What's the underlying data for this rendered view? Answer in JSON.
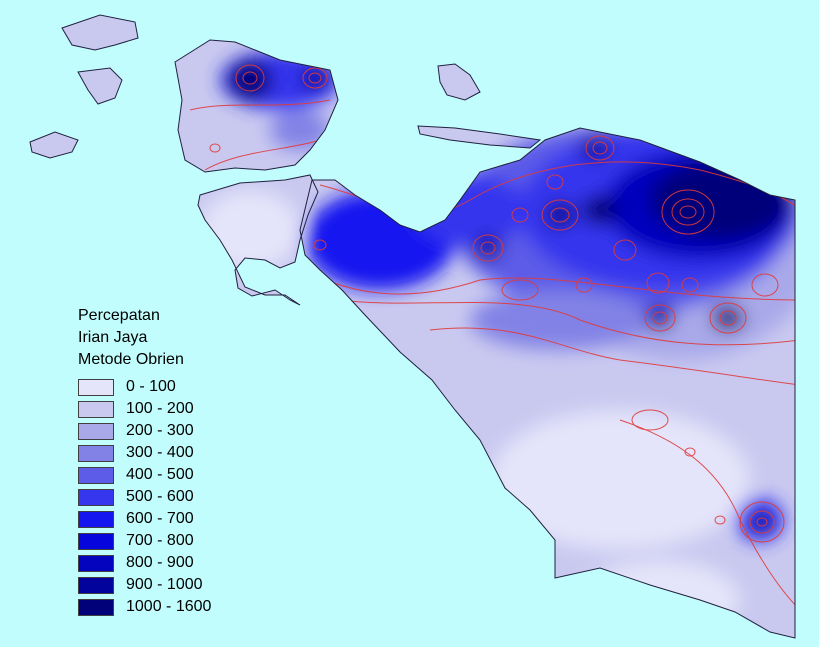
{
  "legend": {
    "title_lines": [
      "Percepatan",
      "Irian Jaya",
      "Metode Obrien"
    ],
    "classes": [
      {
        "label": "0 - 100",
        "color": "#e4e4fa"
      },
      {
        "label": "100 - 200",
        "color": "#c9c9f0"
      },
      {
        "label": "200 - 300",
        "color": "#a9a9ea"
      },
      {
        "label": "300 - 400",
        "color": "#8282e6"
      },
      {
        "label": "400 - 500",
        "color": "#5c5ce8"
      },
      {
        "label": "500 - 600",
        "color": "#3636ee"
      },
      {
        "label": "600 - 700",
        "color": "#1515f0"
      },
      {
        "label": "700 - 800",
        "color": "#0505dc"
      },
      {
        "label": "800 - 900",
        "color": "#0404be"
      },
      {
        "label": "900 - 1000",
        "color": "#02029c"
      },
      {
        "label": "1000 - 1600",
        "color": "#01017a"
      }
    ]
  },
  "map": {
    "sea_color": "#c2fdfd",
    "contour_color": "#e03a3a",
    "coast_color": "#202040"
  }
}
